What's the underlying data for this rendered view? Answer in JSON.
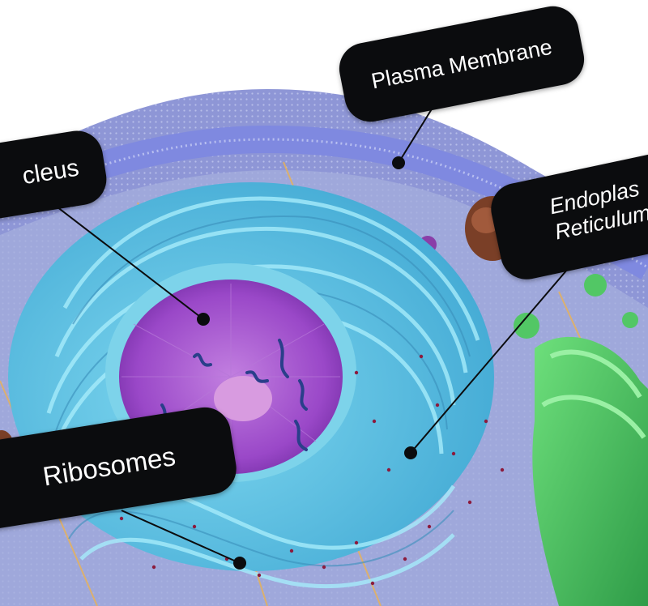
{
  "labels": {
    "plasma_membrane": "Plasma Membrane",
    "nucleus": "cleus",
    "endoplasmic_line1": "Endoplas",
    "endoplasmic_line2": "Reticulum",
    "ribosomes": "Ribosomes"
  },
  "colors": {
    "cell_background": "#8e96d6",
    "membrane": "#7f89e0",
    "cytoplasm": "#a4addc",
    "endoplasmic_reticulum": "#5cc2e4",
    "nucleus": "#9a48c8",
    "nucleolus": "#d89be0",
    "chromatin": "#2a3f8a",
    "golgi": "#52c765",
    "mitochondrion": "#7a3f27",
    "microtubule": "#e6b25a",
    "ribosome": "#8b1b3d",
    "callout": "#0b0c0e",
    "callout_text": "#ffffff"
  }
}
